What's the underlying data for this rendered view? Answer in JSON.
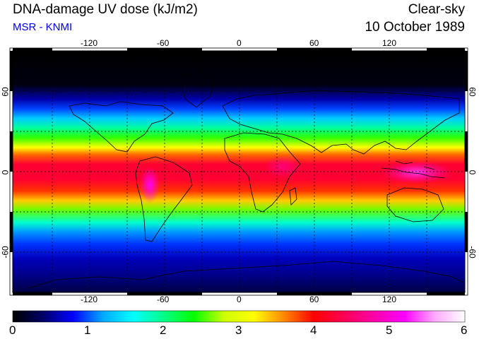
{
  "header": {
    "title": "DNA-damage UV dose (kJ/m2)",
    "subtitle": "MSR - KNMI",
    "condition": "Clear-sky",
    "date": "10 October 1989"
  },
  "map": {
    "lon_ticks": [
      "-120",
      "-60",
      "0",
      "60",
      "120"
    ],
    "lat_ticks": [
      "60",
      "0",
      "-60"
    ]
  },
  "colorbar": {
    "labels": [
      "0",
      "1",
      "2",
      "3",
      "4",
      "5",
      "6"
    ],
    "stops": [
      "#000000",
      "#000066",
      "#0000ff",
      "#00aaff",
      "#00ffff",
      "#00ff88",
      "#00ff00",
      "#ccff00",
      "#ffff00",
      "#ff8800",
      "#ff0000",
      "#ff0055",
      "#ff00aa",
      "#ff00ff",
      "#ffaaff",
      "#ffffff"
    ]
  }
}
